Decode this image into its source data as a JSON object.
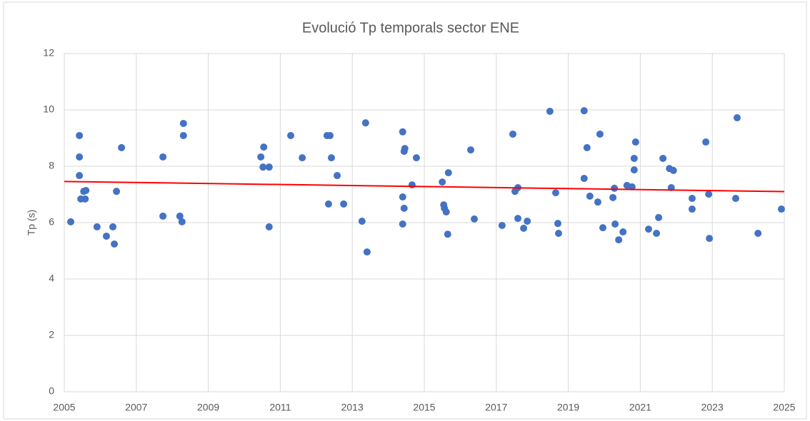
{
  "chart_data": {
    "type": "scatter",
    "title": "Evolució Tp temporals sector ENE",
    "y_label": "Tp (s)",
    "x": [
      2005.18,
      2005.42,
      2005.42,
      2005.42,
      2005.46,
      2005.58,
      2005.54,
      2005.6,
      2005.91,
      2006.17,
      2006.35,
      2006.39,
      2006.45,
      2006.59,
      2007.74,
      2007.74,
      2008.21,
      2008.27,
      2008.31,
      2008.31,
      2010.46,
      2010.54,
      2010.52,
      2010.69,
      2010.69,
      2011.29,
      2011.61,
      2012.3,
      2012.38,
      2012.34,
      2012.42,
      2012.58,
      2012.76,
      2013.27,
      2013.37,
      2013.41,
      2014.4,
      2014.46,
      2014.44,
      2014.4,
      2014.44,
      2014.4,
      2014.66,
      2014.78,
      2015.5,
      2015.54,
      2015.56,
      2015.61,
      2015.67,
      2015.65,
      2016.29,
      2016.39,
      2017.16,
      2017.46,
      2017.52,
      2017.6,
      2017.6,
      2017.76,
      2017.86,
      2018.49,
      2018.65,
      2018.71,
      2018.73,
      2019.44,
      2019.52,
      2019.44,
      2019.6,
      2019.88,
      2019.82,
      2019.96,
      2020.28,
      2020.24,
      2020.3,
      2020.4,
      2020.52,
      2020.63,
      2020.77,
      2020.87,
      2020.83,
      2020.83,
      2021.23,
      2021.45,
      2021.51,
      2021.63,
      2021.81,
      2021.92,
      2021.86,
      2022.44,
      2022.44,
      2022.82,
      2022.9,
      2022.92,
      2023.69,
      2023.65,
      2024.27,
      2024.92
    ],
    "values": [
      6.03,
      9.09,
      8.33,
      7.67,
      6.84,
      6.84,
      7.11,
      7.14,
      5.85,
      5.52,
      5.85,
      5.24,
      7.11,
      8.66,
      8.33,
      6.23,
      6.23,
      6.03,
      9.52,
      9.09,
      8.33,
      8.68,
      7.97,
      7.97,
      5.85,
      9.09,
      8.3,
      9.09,
      9.09,
      6.66,
      8.3,
      7.67,
      6.66,
      6.05,
      9.54,
      4.96,
      9.22,
      8.63,
      8.53,
      6.91,
      6.51,
      5.95,
      7.34,
      8.3,
      7.44,
      6.63,
      6.51,
      6.38,
      7.77,
      5.59,
      8.58,
      6.13,
      5.9,
      9.14,
      7.11,
      7.24,
      6.15,
      5.8,
      6.05,
      9.95,
      7.06,
      5.97,
      5.62,
      9.97,
      8.66,
      7.57,
      6.94,
      9.14,
      6.73,
      5.82,
      7.22,
      6.89,
      5.95,
      5.39,
      5.67,
      7.32,
      7.27,
      8.86,
      8.28,
      7.87,
      5.77,
      5.62,
      6.18,
      8.28,
      7.92,
      7.85,
      7.24,
      6.86,
      6.48,
      8.86,
      7.01,
      5.44,
      9.72,
      6.86,
      5.62,
      6.48
    ],
    "color": "#4472c4",
    "trendline": {
      "x": [
        2005,
        2025
      ],
      "values": [
        7.46,
        7.1
      ],
      "color": "#ff0000"
    },
    "xlim": [
      2005,
      2025
    ],
    "xticks": [
      2005,
      2007,
      2009,
      2011,
      2013,
      2015,
      2017,
      2019,
      2021,
      2023,
      2025
    ],
    "ylim": [
      0,
      12
    ],
    "yticks": [
      0,
      2,
      4,
      6,
      8,
      10,
      12
    ],
    "grid": true
  }
}
